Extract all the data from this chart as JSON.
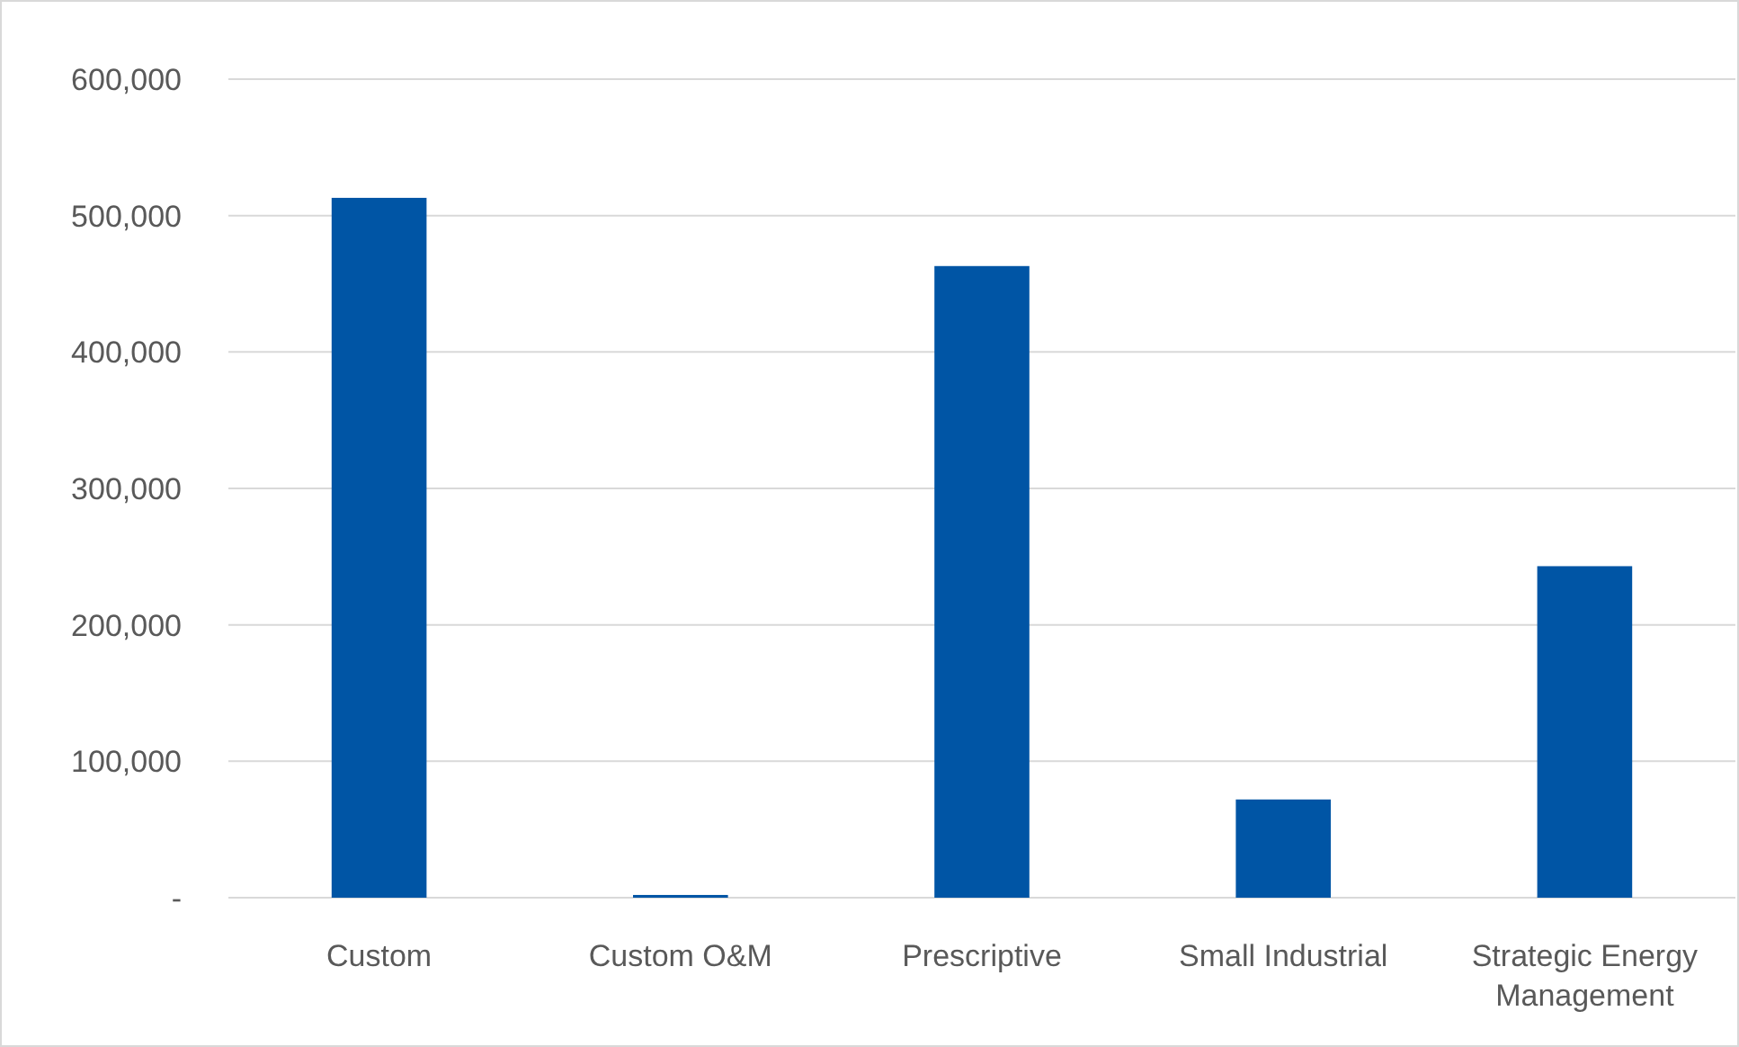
{
  "chart_data": {
    "type": "bar",
    "categories": [
      "Custom",
      "Custom O&M",
      "Prescriptive",
      "Small Industrial",
      "Strategic Energy Management"
    ],
    "values": [
      513000,
      2000,
      463000,
      72000,
      243000
    ],
    "color": "#0055a5",
    "ylim": [
      0,
      600000
    ],
    "yticks": [
      {
        "value": 0,
        "label": "-"
      },
      {
        "value": 100000,
        "label": "100,000"
      },
      {
        "value": 200000,
        "label": "200,000"
      },
      {
        "value": 300000,
        "label": "300,000"
      },
      {
        "value": 400000,
        "label": "400,000"
      },
      {
        "value": 500000,
        "label": "500,000"
      },
      {
        "value": 600000,
        "label": "600,000"
      }
    ],
    "grid": "y"
  }
}
